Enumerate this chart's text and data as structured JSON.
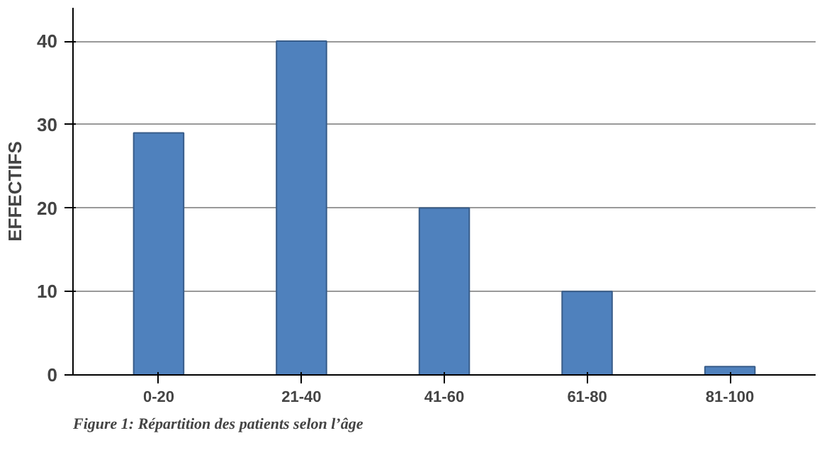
{
  "chart_data": {
    "type": "bar",
    "ylabel": "EFFECTIFS",
    "categories": [
      "0-20",
      "21-40",
      "41-60",
      "61-80",
      "81-100"
    ],
    "values": [
      29,
      40,
      20,
      10,
      1
    ],
    "color": "#4f81bd",
    "ylim": [
      0,
      44
    ],
    "yticks": [
      0,
      10,
      20,
      30,
      40
    ],
    "grid": "y",
    "annotations": [
      "Figure 1: Répartition des patients selon l’âge"
    ]
  }
}
